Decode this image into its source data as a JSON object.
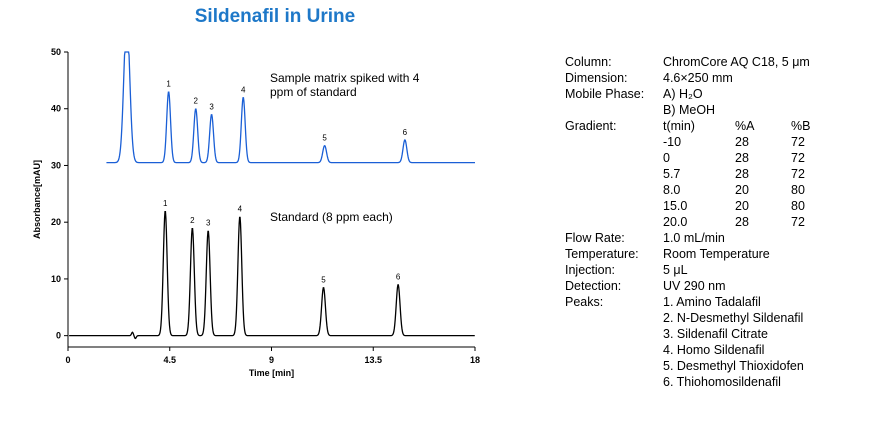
{
  "title": "Sildenafil in Urine",
  "chart_data": {
    "type": "line",
    "xlabel": "Time [min]",
    "ylabel": "Absorbance[mAU]",
    "xlim": [
      0,
      18
    ],
    "ylim": [
      -2,
      50
    ],
    "x_ticks": [
      "0",
      "4.5",
      "9",
      "13.5",
      "18"
    ],
    "y_ticks": [
      "0",
      "10",
      "20",
      "30",
      "40",
      "50"
    ],
    "grid": false,
    "series": [
      {
        "annotation": "Sample matrix spiked with 4 ppm of standard",
        "baseline": 30.5,
        "solvent_front": {
          "time": 2.6,
          "height": 50
        },
        "peaks": [
          {
            "label": "1",
            "time": 4.45,
            "height": 43
          },
          {
            "label": "2",
            "time": 5.65,
            "height": 40
          },
          {
            "label": "3",
            "time": 6.35,
            "height": 39
          },
          {
            "label": "4",
            "time": 7.75,
            "height": 42
          },
          {
            "label": "5",
            "time": 11.35,
            "height": 33.5
          },
          {
            "label": "6",
            "time": 14.9,
            "height": 34.5
          }
        ]
      },
      {
        "annotation": "Standard (8 ppm each)",
        "baseline": 0,
        "peaks": [
          {
            "label": "1",
            "time": 4.3,
            "height": 22
          },
          {
            "label": "2",
            "time": 5.5,
            "height": 19
          },
          {
            "label": "3",
            "time": 6.2,
            "height": 18.5
          },
          {
            "label": "4",
            "time": 7.6,
            "height": 21
          },
          {
            "label": "5",
            "time": 11.3,
            "height": 8.5
          },
          {
            "label": "6",
            "time": 14.6,
            "height": 9
          }
        ]
      }
    ]
  },
  "conditions": {
    "column": {
      "label": "Column:",
      "value": "ChromCore AQ C18, 5 μm"
    },
    "dimension": {
      "label": "Dimension:",
      "value": "4.6×250 mm"
    },
    "mobile_phase": {
      "label": "Mobile Phase:",
      "value_a": "A) H₂O",
      "value_b": "B) MeOH"
    },
    "gradient": {
      "label": "Gradient:",
      "headers": [
        "t(min)",
        "%A",
        "%B"
      ],
      "rows": [
        [
          "-10",
          "28",
          "72"
        ],
        [
          "0",
          "28",
          "72"
        ],
        [
          "5.7",
          "28",
          "72"
        ],
        [
          "8.0",
          "20",
          "80"
        ],
        [
          "15.0",
          "20",
          "80"
        ],
        [
          "20.0",
          "28",
          "72"
        ]
      ]
    },
    "flow_rate": {
      "label": "Flow Rate:",
      "value": "1.0 mL/min"
    },
    "temperature": {
      "label": "Temperature:",
      "value": "Room Temperature"
    },
    "injection": {
      "label": "Injection:",
      "value": "5 μL"
    },
    "detection": {
      "label": "Detection:",
      "value": "UV 290 nm"
    },
    "peaks": {
      "label": "Peaks:",
      "items": [
        "1. Amino Tadalafil",
        "2. N-Desmethyl Sildenafil",
        "3. Sildenafil Citrate",
        "4. Homo Sildenafil",
        "5. Desmethyl Thioxidofen",
        "6. Thiohomosildenafil"
      ]
    }
  }
}
